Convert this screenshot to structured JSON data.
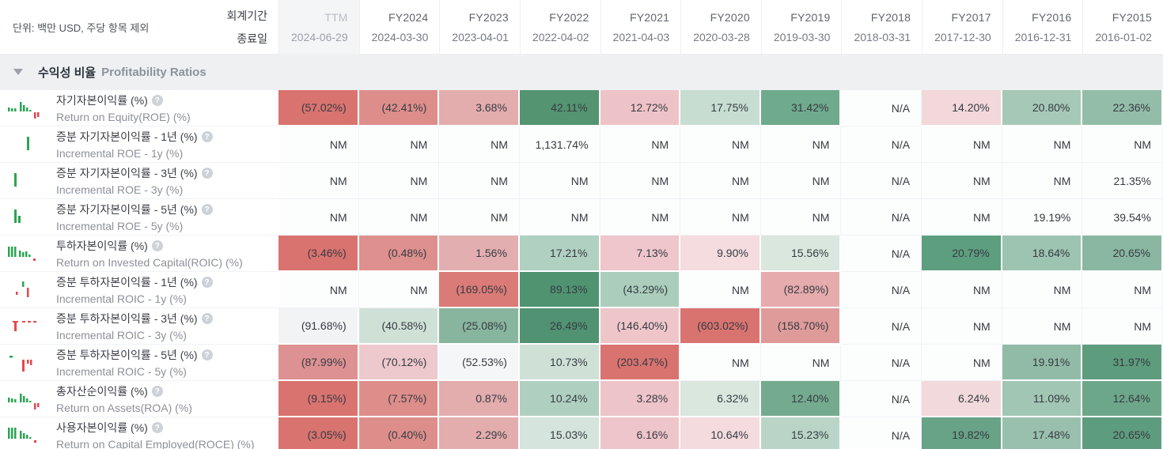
{
  "meta": {
    "unit_note": "단위: 백만 USD, 주당 항목 제외",
    "fiscal_period_label": "회계기간",
    "end_date_label": "종료일"
  },
  "icons": {
    "help_glyph": "?",
    "collapse_icon": "triangle-down-icon"
  },
  "colors": {
    "header_highlight_bg": "#f4f5f7",
    "section_bg": "#eef0f2",
    "positive_strong": "#549471",
    "negative_strong": "#d9736f",
    "sparkline_green": "#2aa552",
    "sparkline_red": "#e5484d"
  },
  "columns": [
    {
      "period": "TTM",
      "end_date": "2024-06-29",
      "highlight": true
    },
    {
      "period": "FY2024",
      "end_date": "2024-03-30"
    },
    {
      "period": "FY2023",
      "end_date": "2023-04-01"
    },
    {
      "period": "FY2022",
      "end_date": "2022-04-02"
    },
    {
      "period": "FY2021",
      "end_date": "2021-04-03"
    },
    {
      "period": "FY2020",
      "end_date": "2020-03-28"
    },
    {
      "period": "FY2019",
      "end_date": "2019-03-30"
    },
    {
      "period": "FY2018",
      "end_date": "2018-03-31"
    },
    {
      "period": "FY2017",
      "end_date": "2017-12-30"
    },
    {
      "period": "FY2016",
      "end_date": "2016-12-31"
    },
    {
      "period": "FY2015",
      "end_date": "2016-01-02"
    }
  ],
  "section": {
    "title_ko": "수익성 비율",
    "title_en": "Profitability Ratios"
  },
  "rows": [
    {
      "label_ko": "자기자본이익률 (%)",
      "label_en": "Return on Equity(ROE) (%)",
      "icon": "roe-sparkline-icon",
      "cells": [
        {
          "text": "(57.02%)",
          "bg": "#d9736f"
        },
        {
          "text": "(42.41%)",
          "bg": "#dd8e8b"
        },
        {
          "text": "3.68%",
          "bg": "#e3acad"
        },
        {
          "text": "42.11%",
          "bg": "#549471"
        },
        {
          "text": "12.72%",
          "bg": "#eec3c8"
        },
        {
          "text": "17.75%",
          "bg": "#c7ddd2"
        },
        {
          "text": "31.42%",
          "bg": "#70aa8d"
        },
        {
          "text": "N/A",
          "bg": null
        },
        {
          "text": "14.20%",
          "bg": "#f2d8db"
        },
        {
          "text": "20.80%",
          "bg": "#a6c9b7"
        },
        {
          "text": "22.36%",
          "bg": "#93bda9"
        }
      ]
    },
    {
      "label_ko": "증분 자기자본이익률 - 1년 (%)",
      "label_en": "Incremental ROE - 1y (%)",
      "icon": "single-bar-center-icon",
      "cells": [
        {
          "text": "NM",
          "bg": null
        },
        {
          "text": "NM",
          "bg": null
        },
        {
          "text": "NM",
          "bg": null
        },
        {
          "text": "1,131.74%",
          "bg": null
        },
        {
          "text": "NM",
          "bg": null
        },
        {
          "text": "NM",
          "bg": null
        },
        {
          "text": "NM",
          "bg": null
        },
        {
          "text": "N/A",
          "bg": null
        },
        {
          "text": "NM",
          "bg": null
        },
        {
          "text": "NM",
          "bg": null
        },
        {
          "text": "NM",
          "bg": null
        }
      ]
    },
    {
      "label_ko": "증분 자기자본이익률 - 3년 (%)",
      "label_en": "Incremental ROE - 3y (%)",
      "icon": "single-bar-left-icon",
      "cells": [
        {
          "text": "NM",
          "bg": null
        },
        {
          "text": "NM",
          "bg": null
        },
        {
          "text": "NM",
          "bg": null
        },
        {
          "text": "NM",
          "bg": null
        },
        {
          "text": "NM",
          "bg": null
        },
        {
          "text": "NM",
          "bg": null
        },
        {
          "text": "NM",
          "bg": null
        },
        {
          "text": "N/A",
          "bg": null
        },
        {
          "text": "NM",
          "bg": null
        },
        {
          "text": "NM",
          "bg": null
        },
        {
          "text": "21.35%",
          "bg": null
        }
      ]
    },
    {
      "label_ko": "증분 자기자본이익률 - 5년 (%)",
      "label_en": "Incremental ROE - 5y (%)",
      "icon": "two-bars-icon",
      "cells": [
        {
          "text": "NM",
          "bg": null
        },
        {
          "text": "NM",
          "bg": null
        },
        {
          "text": "NM",
          "bg": null
        },
        {
          "text": "NM",
          "bg": null
        },
        {
          "text": "NM",
          "bg": null
        },
        {
          "text": "NM",
          "bg": null
        },
        {
          "text": "NM",
          "bg": null
        },
        {
          "text": "N/A",
          "bg": null
        },
        {
          "text": "NM",
          "bg": null
        },
        {
          "text": "19.19%",
          "bg": null
        },
        {
          "text": "39.54%",
          "bg": null
        }
      ]
    },
    {
      "label_ko": "투하자본이익률 (%)",
      "label_en": "Return on Invested Capital(ROIC) (%)",
      "icon": "roic-sparkline-icon",
      "cells": [
        {
          "text": "(3.46%)",
          "bg": "#d9736f"
        },
        {
          "text": "(0.48%)",
          "bg": "#dd908d"
        },
        {
          "text": "1.56%",
          "bg": "#e3aeb0"
        },
        {
          "text": "17.21%",
          "bg": "#b0d0c1"
        },
        {
          "text": "7.13%",
          "bg": "#eec6cb"
        },
        {
          "text": "9.90%",
          "bg": "#f4dcdf"
        },
        {
          "text": "15.56%",
          "bg": "#d9e7df"
        },
        {
          "text": "N/A",
          "bg": null
        },
        {
          "text": "20.79%",
          "bg": "#5d9e7f"
        },
        {
          "text": "18.64%",
          "bg": "#9dc3b1"
        },
        {
          "text": "20.65%",
          "bg": "#8ab7a1"
        }
      ]
    },
    {
      "label_ko": "증분 투하자본이익률 - 1년 (%)",
      "label_en": "Incremental ROIC - 1y (%)",
      "icon": "mixed-bars-icon",
      "cells": [
        {
          "text": "NM",
          "bg": null
        },
        {
          "text": "NM",
          "bg": null
        },
        {
          "text": "(169.05%)",
          "bg": "#da7b77"
        },
        {
          "text": "89.13%",
          "bg": "#509371"
        },
        {
          "text": "(43.29%)",
          "bg": "#abcebc"
        },
        {
          "text": "NM",
          "bg": null
        },
        {
          "text": "(82.89%)",
          "bg": "#e5abad"
        },
        {
          "text": "N/A",
          "bg": null
        },
        {
          "text": "NM",
          "bg": null
        },
        {
          "text": "NM",
          "bg": null
        },
        {
          "text": "NM",
          "bg": null
        }
      ]
    },
    {
      "label_ko": "증분 투하자본이익률 - 3년 (%)",
      "label_en": "Incremental ROIC - 3y (%)",
      "icon": "red-bars-icon",
      "cells": [
        {
          "text": "(91.68%)",
          "bg": "#f2f3f5"
        },
        {
          "text": "(40.58%)",
          "bg": "#cfe1d7"
        },
        {
          "text": "(25.08%)",
          "bg": "#88b59e"
        },
        {
          "text": "26.49%",
          "bg": "#509271"
        },
        {
          "text": "(146.40%)",
          "bg": "#eec6ca"
        },
        {
          "text": "(603.02%)",
          "bg": "#d9736f"
        },
        {
          "text": "(158.70%)",
          "bg": "#df9b9a"
        },
        {
          "text": "N/A",
          "bg": null
        },
        {
          "text": "NM",
          "bg": null
        },
        {
          "text": "NM",
          "bg": null
        },
        {
          "text": "NM",
          "bg": null
        }
      ]
    },
    {
      "label_ko": "증분 투하자본이익률 - 5년 (%)",
      "label_en": "Incremental ROIC - 5y (%)",
      "icon": "red-green-bars-icon",
      "cells": [
        {
          "text": "(87.99%)",
          "bg": "#dd9192"
        },
        {
          "text": "(70.12%)",
          "bg": "#edc8cc"
        },
        {
          "text": "(52.53%)",
          "bg": "#f5f6f7"
        },
        {
          "text": "10.73%",
          "bg": "#cfe0d7"
        },
        {
          "text": "(203.47%)",
          "bg": "#d9736f"
        },
        {
          "text": "NM",
          "bg": null
        },
        {
          "text": "NM",
          "bg": null
        },
        {
          "text": "N/A",
          "bg": null
        },
        {
          "text": "NM",
          "bg": null
        },
        {
          "text": "19.91%",
          "bg": "#92bba7"
        },
        {
          "text": "31.97%",
          "bg": "#5d9c7d"
        }
      ]
    },
    {
      "label_ko": "총자산순이익률 (%)",
      "label_en": "Return on Assets(ROA) (%)",
      "icon": "roa-sparkline-icon",
      "cells": [
        {
          "text": "(9.15%)",
          "bg": "#d9736f"
        },
        {
          "text": "(7.57%)",
          "bg": "#dd8e8b"
        },
        {
          "text": "0.87%",
          "bg": "#e3acad"
        },
        {
          "text": "10.24%",
          "bg": "#afd0c0"
        },
        {
          "text": "3.28%",
          "bg": "#edc4c9"
        },
        {
          "text": "6.32%",
          "bg": "#d9e7df"
        },
        {
          "text": "12.40%",
          "bg": "#74ab8f"
        },
        {
          "text": "N/A",
          "bg": null
        },
        {
          "text": "6.24%",
          "bg": "#f2d9dc"
        },
        {
          "text": "11.09%",
          "bg": "#a2c6b4"
        },
        {
          "text": "12.64%",
          "bg": "#6da78a"
        }
      ]
    },
    {
      "label_ko": "사용자본이익률 (%)",
      "label_en": "Return on Capital Employed(ROCE) (%)",
      "icon": "roce-sparkline-icon",
      "cells": [
        {
          "text": "(3.05%)",
          "bg": "#d9736f"
        },
        {
          "text": "(0.40%)",
          "bg": "#dd8e8b"
        },
        {
          "text": "2.29%",
          "bg": "#e3acad"
        },
        {
          "text": "15.03%",
          "bg": "#d5e4dc"
        },
        {
          "text": "6.16%",
          "bg": "#eec5ca"
        },
        {
          "text": "10.64%",
          "bg": "#f3dbde"
        },
        {
          "text": "15.23%",
          "bg": "#bad5c8"
        },
        {
          "text": "N/A",
          "bg": null
        },
        {
          "text": "19.82%",
          "bg": "#68a287"
        },
        {
          "text": "17.48%",
          "bg": "#99c0ae"
        },
        {
          "text": "20.65%",
          "bg": "#5d9c7e"
        }
      ]
    }
  ]
}
